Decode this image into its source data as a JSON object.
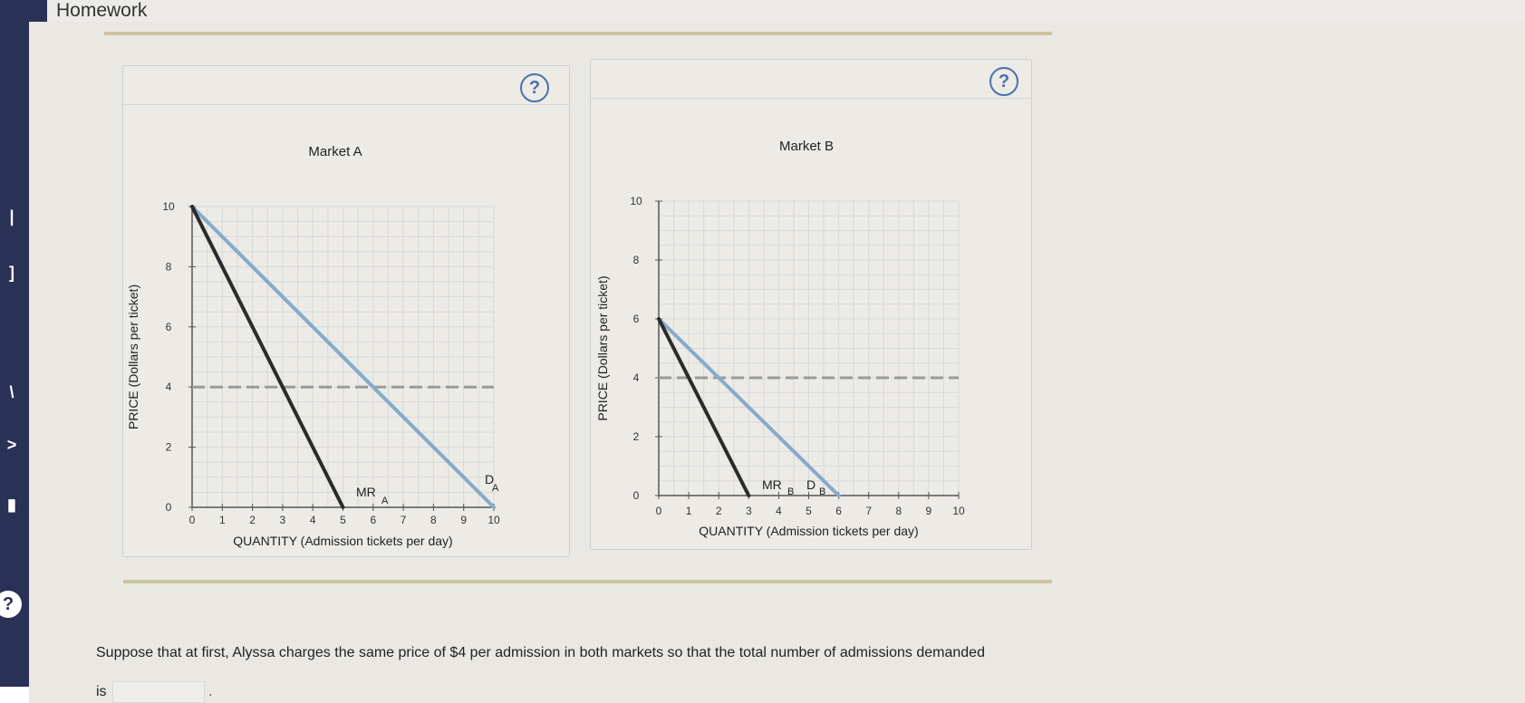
{
  "page": {
    "title": "Homework",
    "question_text": "Suppose that at first, Alyssa charges the same price of $4 per admission in both markets so that the total number of admissions demanded",
    "answer_prefix": "is",
    "answer_suffix": ".",
    "help_symbol": "?"
  },
  "colors": {
    "demand": "#86aacb",
    "mr": "#2b2b2b",
    "price_line": "#9a9a9a",
    "grid": "#d9d9d9",
    "axis": "#555555"
  },
  "chart_data": [
    {
      "type": "line",
      "title": "Market A",
      "xlabel": "QUANTITY (Admission tickets per day)",
      "ylabel": "PRICE (Dollars per ticket)",
      "xlim": [
        0,
        10
      ],
      "ylim": [
        0,
        10
      ],
      "xticks": [
        "0",
        "1",
        "2",
        "3",
        "4",
        "5",
        "6",
        "7",
        "8",
        "9",
        "10"
      ],
      "yticks": [
        "0",
        "2",
        "4",
        "6",
        "8",
        "10"
      ],
      "grid": true,
      "series": [
        {
          "name": "DA",
          "label_main": "D",
          "label_sub": "A",
          "x": [
            0,
            10
          ],
          "y": [
            10,
            0
          ]
        },
        {
          "name": "MRA",
          "label_main": "MR",
          "label_sub": "A",
          "x": [
            0,
            5
          ],
          "y": [
            10,
            0
          ]
        },
        {
          "x": [
            0,
            10
          ],
          "y": [
            4,
            4
          ]
        }
      ]
    },
    {
      "type": "line",
      "title": "Market B",
      "xlabel": "QUANTITY (Admission tickets per day)",
      "ylabel": "PRICE (Dollars per ticket)",
      "xlim": [
        0,
        10
      ],
      "ylim": [
        0,
        10
      ],
      "xticks": [
        "0",
        "1",
        "2",
        "3",
        "4",
        "5",
        "6",
        "7",
        "8",
        "9",
        "10"
      ],
      "yticks": [
        "0",
        "2",
        "4",
        "6",
        "8",
        "10"
      ],
      "grid": true,
      "series": [
        {
          "name": "DB",
          "label_main": "D",
          "label_sub": "B",
          "x": [
            0,
            6
          ],
          "y": [
            6,
            0
          ]
        },
        {
          "name": "MRB",
          "label_main": "MR",
          "label_sub": "B",
          "x": [
            0,
            3
          ],
          "y": [
            6,
            0
          ]
        },
        {
          "x": [
            0,
            10
          ],
          "y": [
            4,
            4
          ]
        }
      ]
    }
  ]
}
